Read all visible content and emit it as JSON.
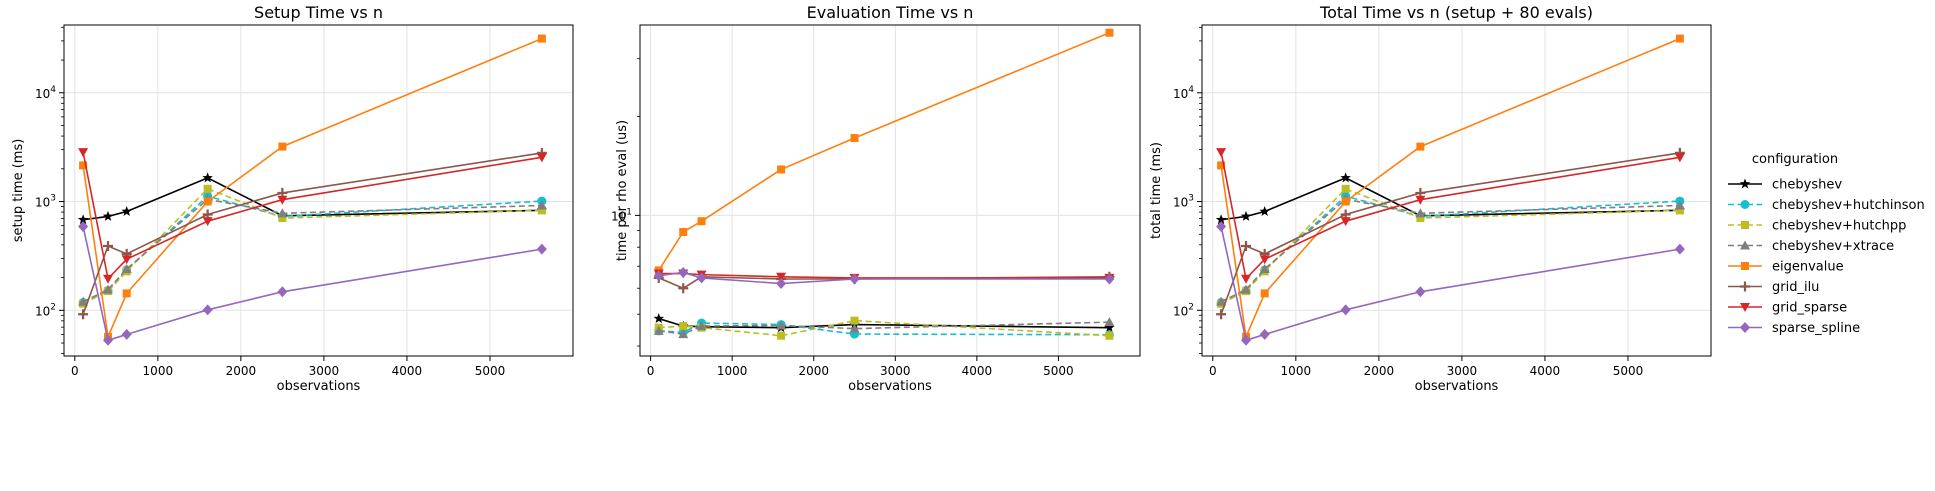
{
  "legend": {
    "title": "configuration",
    "placement": "center-right"
  },
  "series_styles": [
    {
      "name": "chebyshev",
      "color": "#000000",
      "dash": "solid",
      "marker": "star"
    },
    {
      "name": "chebyshev+hutchinson",
      "color": "#17becf",
      "dash": "dashed",
      "marker": "circle"
    },
    {
      "name": "chebyshev+hutchpp",
      "color": "#bcbd22",
      "dash": "dashed",
      "marker": "square"
    },
    {
      "name": "chebyshev+xtrace",
      "color": "#7f7f7f",
      "dash": "dashed",
      "marker": "triangle"
    },
    {
      "name": "eigenvalue",
      "color": "#ff7f0e",
      "dash": "solid",
      "marker": "square"
    },
    {
      "name": "grid_ilu",
      "color": "#8c564b",
      "dash": "solid",
      "marker": "plus"
    },
    {
      "name": "grid_sparse",
      "color": "#d62728",
      "dash": "solid",
      "marker": "triangle-down"
    },
    {
      "name": "sparse_spline",
      "color": "#9467bd",
      "dash": "solid",
      "marker": "diamond"
    }
  ],
  "chart_data": [
    {
      "type": "line",
      "title": "Setup Time vs n",
      "xlabel": "observations",
      "ylabel": "setup time (ms)",
      "yscale": "log",
      "xlim": [
        -130,
        6000
      ],
      "ylim": [
        38,
        42000
      ],
      "xticks": [
        "0",
        "1000",
        "2000",
        "3000",
        "4000",
        "5000"
      ],
      "yticks": [
        "10^2",
        "10^3",
        "10^4"
      ],
      "grid": true,
      "x": [
        100,
        400,
        625,
        1600,
        2500,
        5625
      ],
      "series": [
        {
          "name": "chebyshev",
          "values": [
            680,
            730,
            810,
            1650,
            740,
            830
          ]
        },
        {
          "name": "chebyshev+hutchinson",
          "values": [
            118,
            152,
            235,
            1120,
            730,
            1010
          ]
        },
        {
          "name": "chebyshev+hutchpp",
          "values": [
            115,
            150,
            228,
            1310,
            705,
            830
          ]
        },
        {
          "name": "chebyshev+xtrace",
          "values": [
            120,
            155,
            240,
            1050,
            780,
            920
          ]
        },
        {
          "name": "eigenvalue",
          "values": [
            2150,
            57,
            143,
            1000,
            3200,
            31500
          ]
        },
        {
          "name": "grid_ilu",
          "values": [
            92,
            390,
            330,
            760,
            1200,
            2800
          ]
        },
        {
          "name": "grid_sparse",
          "values": [
            2850,
            195,
            295,
            660,
            1040,
            2550
          ]
        },
        {
          "name": "sparse_spline",
          "values": [
            590,
            53,
            60,
            101,
            148,
            365
          ]
        }
      ]
    },
    {
      "type": "line",
      "title": "Evaluation Time vs n",
      "xlabel": "observations",
      "ylabel": "time per rho eval (us)",
      "yscale": "log",
      "xlim": [
        -130,
        6000
      ],
      "ylim": [
        3.73,
        38
      ],
      "xticks": [
        "0",
        "1000",
        "2000",
        "3000",
        "4000",
        "5000"
      ],
      "yticks": [
        "10^1"
      ],
      "grid": true,
      "x": [
        100,
        400,
        625,
        1600,
        2500,
        5625
      ],
      "series": [
        {
          "name": "chebyshev",
          "values": [
            4.85,
            4.6,
            4.58,
            4.55,
            4.65,
            4.55
          ]
        },
        {
          "name": "chebyshev+hutchinson",
          "values": [
            4.45,
            4.4,
            4.7,
            4.65,
            4.35,
            4.33
          ]
        },
        {
          "name": "chebyshev+hutchpp",
          "values": [
            4.55,
            4.6,
            4.55,
            4.3,
            4.78,
            4.3
          ]
        },
        {
          "name": "chebyshev+xtrace",
          "values": [
            4.45,
            4.35,
            4.6,
            4.62,
            4.52,
            4.73
          ]
        },
        {
          "name": "eigenvalue",
          "values": [
            6.8,
            8.9,
            9.6,
            13.8,
            17.2,
            36.0
          ]
        },
        {
          "name": "grid_ilu",
          "values": [
            6.45,
            6.0,
            6.5,
            6.4,
            6.4,
            6.5
          ]
        },
        {
          "name": "grid_sparse",
          "values": [
            6.65,
            6.65,
            6.6,
            6.5,
            6.45,
            6.45
          ]
        },
        {
          "name": "sparse_spline",
          "values": [
            6.55,
            6.7,
            6.45,
            6.2,
            6.4,
            6.4
          ]
        }
      ]
    },
    {
      "type": "line",
      "title": "Total Time vs n (setup + 80 evals)",
      "xlabel": "observations",
      "ylabel": "total time (ms)",
      "yscale": "log",
      "xlim": [
        -130,
        6000
      ],
      "ylim": [
        38,
        42000
      ],
      "xticks": [
        "0",
        "1000",
        "2000",
        "3000",
        "4000",
        "5000"
      ],
      "yticks": [
        "10^2",
        "10^3",
        "10^4"
      ],
      "grid": true,
      "x": [
        100,
        400,
        625,
        1600,
        2500,
        5625
      ],
      "series": [
        {
          "name": "chebyshev",
          "values": [
            680,
            730,
            810,
            1650,
            740,
            830
          ]
        },
        {
          "name": "chebyshev+hutchinson",
          "values": [
            118,
            152,
            235,
            1120,
            730,
            1010
          ]
        },
        {
          "name": "chebyshev+hutchpp",
          "values": [
            115,
            150,
            228,
            1310,
            705,
            830
          ]
        },
        {
          "name": "chebyshev+xtrace",
          "values": [
            120,
            155,
            240,
            1050,
            780,
            920
          ]
        },
        {
          "name": "eigenvalue",
          "values": [
            2150,
            57,
            143,
            1000,
            3200,
            31500
          ]
        },
        {
          "name": "grid_ilu",
          "values": [
            92,
            390,
            330,
            760,
            1200,
            2800
          ]
        },
        {
          "name": "grid_sparse",
          "values": [
            2850,
            195,
            295,
            660,
            1040,
            2550
          ]
        },
        {
          "name": "sparse_spline",
          "values": [
            590,
            53,
            60,
            101,
            148,
            365
          ]
        }
      ]
    }
  ]
}
